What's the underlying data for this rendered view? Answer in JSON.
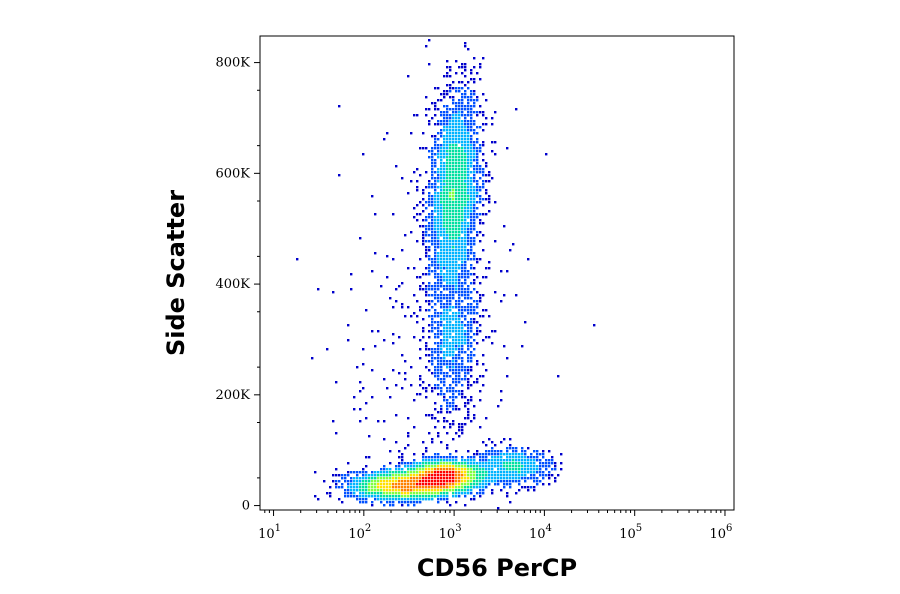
{
  "chart_data": {
    "type": "scatter",
    "style": "density-colored flow cytometry dot plot",
    "xlabel": "CD56 PerCP",
    "ylabel": "Side Scatter",
    "x_scale": "log",
    "xlim": [
      10,
      1000000
    ],
    "ylim": [
      0,
      850000
    ],
    "x_tick_labels": [
      {
        "base": "10",
        "exp": "1",
        "value": 10
      },
      {
        "base": "10",
        "exp": "2",
        "value": 100
      },
      {
        "base": "10",
        "exp": "3",
        "value": 1000
      },
      {
        "base": "10",
        "exp": "4",
        "value": 10000
      },
      {
        "base": "10",
        "exp": "5",
        "value": 100000
      },
      {
        "base": "10",
        "exp": "6",
        "value": 1000000
      }
    ],
    "y_tick_labels": [
      {
        "label": "0",
        "value": 0
      },
      {
        "label": "200K",
        "value": 200000
      },
      {
        "label": "400K",
        "value": 400000
      },
      {
        "label": "600K",
        "value": 600000
      },
      {
        "label": "800K",
        "value": 800000
      }
    ],
    "grid": false,
    "legend": "none",
    "density_colors": [
      "#0000cc",
      "#0050ff",
      "#00b4ff",
      "#00e0a0",
      "#80ff40",
      "#ffe000",
      "#ff8000",
      "#ff0000"
    ],
    "populations": [
      {
        "x_center": 1000,
        "x_log_sd": 0.14,
        "y_center": 560000,
        "y_sd": 95000,
        "count": 3200,
        "rho": 0.25
      },
      {
        "x_center": 1000,
        "x_log_sd": 0.14,
        "y_center": 300000,
        "y_sd": 70000,
        "count": 900,
        "rho": 0.1
      },
      {
        "x_center": 800,
        "x_log_sd": 0.22,
        "y_center": 52000,
        "y_sd": 14000,
        "count": 2600,
        "rho": 0.0
      },
      {
        "x_center": 250,
        "x_log_sd": 0.28,
        "y_center": 35000,
        "y_sd": 12000,
        "count": 2200,
        "rho": 0.0
      },
      {
        "x_center": 4500,
        "x_log_sd": 0.22,
        "y_center": 70000,
        "y_sd": 16000,
        "count": 700,
        "rho": 0.0
      },
      {
        "x_center": 600,
        "x_log_sd": 0.5,
        "y_center": 250000,
        "y_sd": 220000,
        "count": 400,
        "rho": 0.0
      }
    ]
  }
}
